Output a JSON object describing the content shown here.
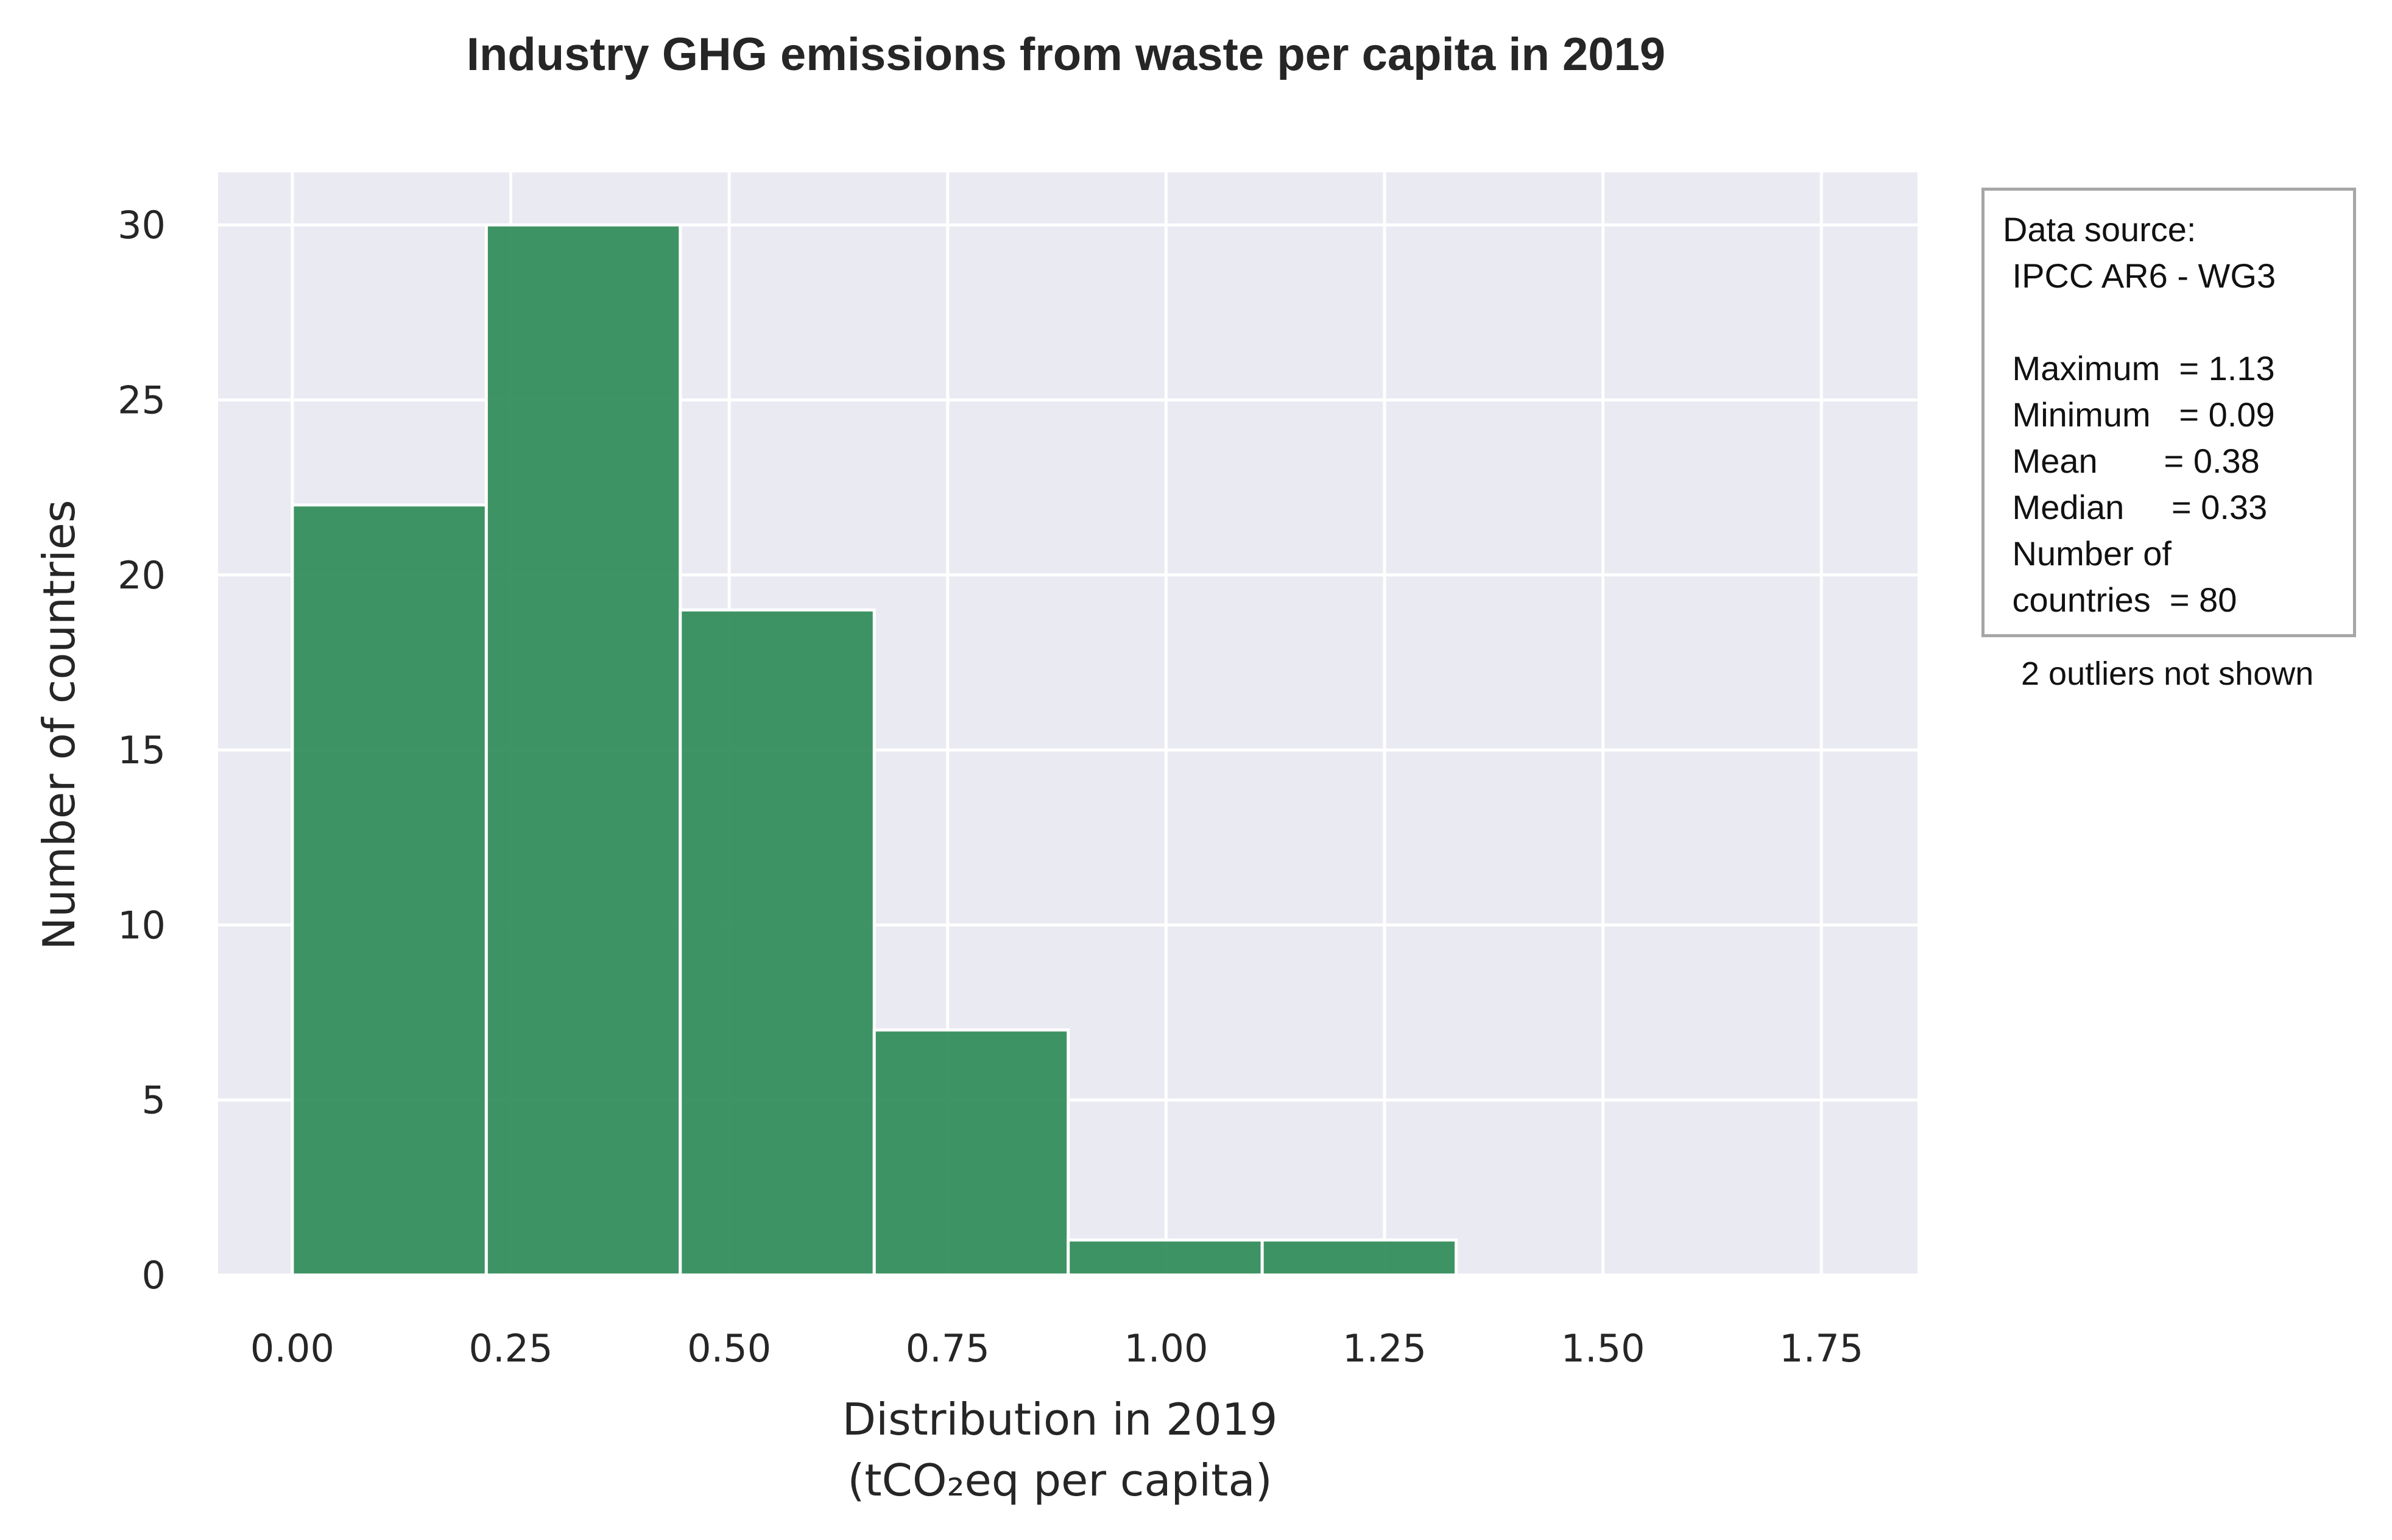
{
  "chart_data": {
    "type": "bar",
    "subtype": "histogram",
    "title": "Industry GHG emissions from waste per capita in 2019",
    "xlabel_line1": "Distribution in 2019",
    "xlabel_line2": "(tCO₂eq per capita)",
    "ylabel": "Number of countries",
    "bins": [
      {
        "start": 0.0,
        "end": 0.222,
        "count": 22
      },
      {
        "start": 0.222,
        "end": 0.444,
        "count": 30
      },
      {
        "start": 0.444,
        "end": 0.666,
        "count": 19
      },
      {
        "start": 0.666,
        "end": 0.888,
        "count": 7
      },
      {
        "start": 0.888,
        "end": 1.11,
        "count": 1
      },
      {
        "start": 1.11,
        "end": 1.332,
        "count": 1
      }
    ],
    "xlim": [
      -0.085,
      1.86
    ],
    "ylim": [
      0,
      31.5
    ],
    "xticks": [
      0.0,
      0.25,
      0.5,
      0.75,
      1.0,
      1.25,
      1.5,
      1.75
    ],
    "xtick_labels": [
      "0.00",
      "0.25",
      "0.50",
      "0.75",
      "1.00",
      "1.25",
      "1.50",
      "1.75"
    ],
    "yticks": [
      0,
      5,
      10,
      15,
      20,
      25,
      30
    ],
    "ytick_labels": [
      "0",
      "5",
      "10",
      "15",
      "20",
      "25",
      "30"
    ],
    "grid": true,
    "colors": {
      "bar": "#2e8b57",
      "bar_edge": "#ffffff",
      "plot_bg": "#eaeaf2",
      "grid": "#ffffff",
      "text": "#262626"
    }
  },
  "info_box": {
    "line1": "Data source:",
    "line2": " IPCC AR6 - WG3",
    "line3": " Maximum  = 1.13",
    "line4": " Minimum   = 0.09",
    "line5": " Mean       = 0.38",
    "line6": " Median     = 0.33",
    "line7": " Number of",
    "line8": " countries  = 80"
  },
  "outliers_note": "2 outliers not shown"
}
